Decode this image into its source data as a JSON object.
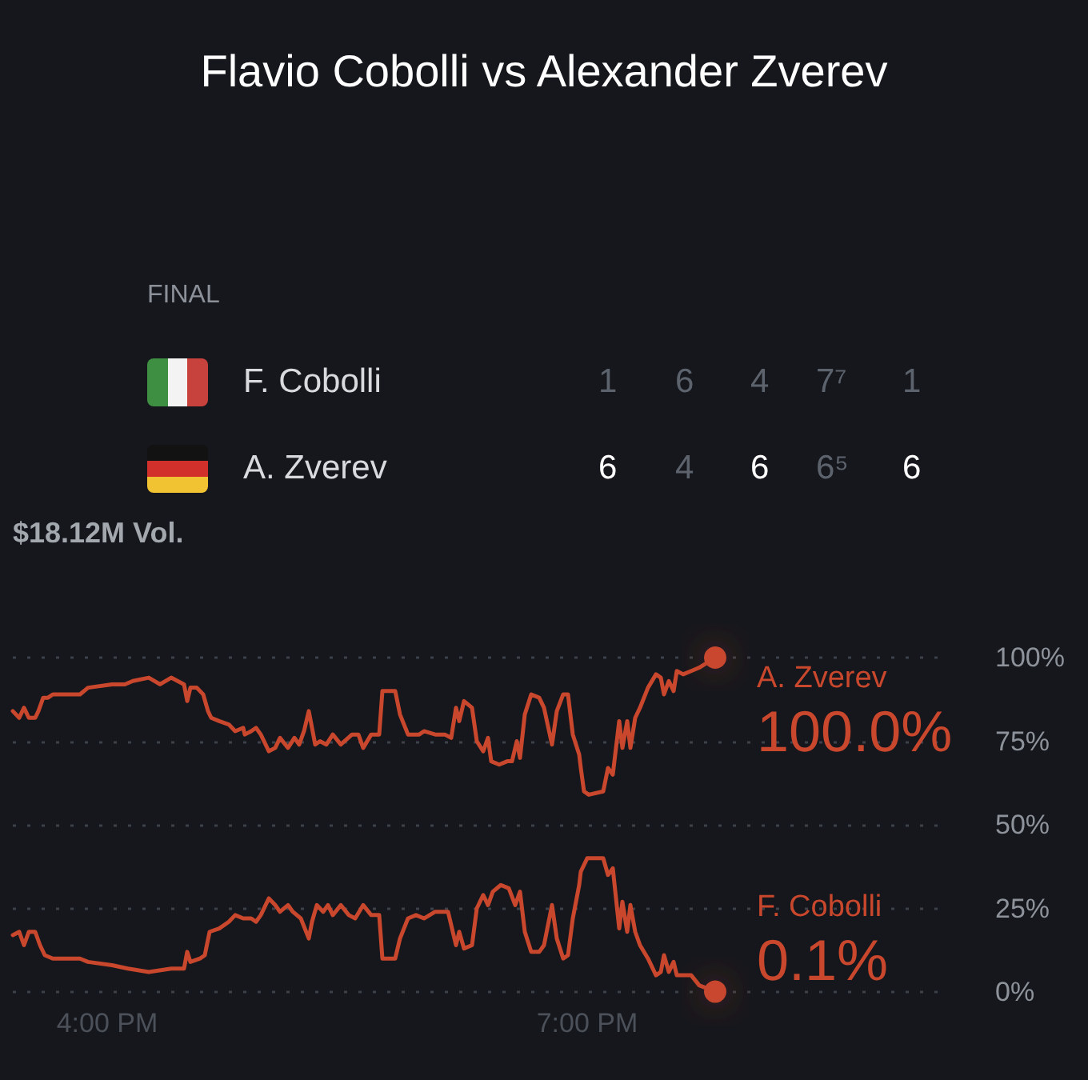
{
  "chart_data": [
    {
      "type": "other",
      "title": "Flavio Cobolli vs Alexander Zverev",
      "subtitle": "FINAL",
      "annotations": [
        "F. Cobolli",
        "1",
        "6",
        "4",
        "7⁷",
        "1",
        "A. Zverev",
        "6",
        "4",
        "6",
        "6⁵",
        "6"
      ]
    },
    {
      "type": "line",
      "annotations": [
        "$18.12M Vol."
      ],
      "xlim": [
        15.41,
        21.23
      ],
      "xticks": [
        {
          "value": 16,
          "label": "4:00 PM"
        },
        {
          "value": 19,
          "label": "7:00 PM"
        }
      ],
      "ylim": [
        0,
        100
      ],
      "yticks": [
        {
          "value": 0,
          "label": "0%"
        },
        {
          "value": 25,
          "label": "25%"
        },
        {
          "value": 50,
          "label": "50%"
        },
        {
          "value": 75,
          "label": "75%"
        },
        {
          "value": 100,
          "label": "100%"
        }
      ],
      "grid": "y",
      "line_style": "solid",
      "series": [
        {
          "name": "A. Zverev",
          "color": "#c8472d",
          "x": [
            15.41,
            15.45,
            15.48,
            15.51,
            15.55,
            15.57,
            15.6,
            15.63,
            15.66,
            15.83,
            15.88,
            16.03,
            16.11,
            16.16,
            16.26,
            16.33,
            16.4,
            16.48,
            16.5,
            16.52,
            16.56,
            16.6,
            16.63,
            16.65,
            16.7,
            16.76,
            16.8,
            16.85,
            16.86,
            16.9,
            16.93,
            16.96,
            17.01,
            17.05,
            17.08,
            17.13,
            17.17,
            17.2,
            17.23,
            17.26,
            17.28,
            17.3,
            17.33,
            17.37,
            17.41,
            17.46,
            17.53,
            17.57,
            17.6,
            17.65,
            17.7,
            17.72,
            17.8,
            17.83,
            17.88,
            17.95,
            17.98,
            18.05,
            18.11,
            18.15,
            18.18,
            18.2,
            18.23,
            18.28,
            18.31,
            18.35,
            18.38,
            18.4,
            18.45,
            18.5,
            18.53,
            18.56,
            18.58,
            18.61,
            18.65,
            18.7,
            18.73,
            18.78,
            18.81,
            18.85,
            18.88,
            18.91,
            18.95,
            18.96,
            18.98,
            19.01,
            19.1,
            19.13,
            19.16,
            19.2,
            19.22,
            19.25,
            19.27,
            19.3,
            19.33,
            19.38,
            19.43,
            19.46,
            19.48,
            19.51,
            19.54,
            19.56,
            19.6,
            19.65,
            19.7,
            19.8
          ],
          "values": [
            84,
            82,
            85,
            82,
            82,
            84,
            88,
            88,
            89,
            89,
            91,
            92,
            92,
            93,
            94,
            92,
            94,
            92,
            87,
            91,
            91,
            89,
            84,
            82,
            81,
            80,
            78,
            79,
            77,
            78,
            79,
            77,
            72,
            73,
            76,
            73,
            76,
            74,
            78,
            84,
            79,
            74,
            75,
            74,
            77,
            74,
            77,
            77,
            73,
            77,
            77,
            90,
            90,
            83,
            77,
            77,
            78,
            77,
            77,
            76,
            85,
            81,
            87,
            85,
            75,
            72,
            76,
            69,
            68,
            69,
            69,
            75,
            70,
            83,
            89,
            88,
            85,
            74,
            84,
            89,
            89,
            77,
            71,
            67,
            60,
            59,
            60,
            67,
            65,
            81,
            73,
            81,
            73,
            82,
            85,
            91,
            95,
            94,
            89,
            93,
            90,
            96,
            95,
            96,
            97,
            100
          ],
          "value_labels": [
            null,
            null,
            null,
            null,
            null,
            null,
            null,
            null,
            null,
            null,
            null,
            null,
            null,
            null,
            null,
            null,
            null,
            null,
            null,
            null,
            null,
            null,
            null,
            null,
            null,
            null,
            null,
            null,
            null,
            null,
            null,
            null,
            null,
            null,
            null,
            null,
            null,
            null,
            null,
            null,
            null,
            null,
            null,
            null,
            null,
            null,
            null,
            null,
            null,
            null,
            null,
            null,
            null,
            null,
            null,
            null,
            null,
            null,
            null,
            null,
            null,
            null,
            null,
            null,
            null,
            null,
            null,
            null,
            null,
            null,
            null,
            null,
            null,
            null,
            null,
            null,
            null,
            null,
            null,
            null,
            null,
            null,
            null,
            null,
            null,
            null,
            null,
            null,
            null,
            null,
            null,
            null,
            null,
            null,
            null,
            null,
            null,
            null,
            null,
            null,
            null,
            null,
            null,
            null,
            null,
            "100.0%"
          ]
        },
        {
          "name": "F. Cobolli",
          "color": "#c8472d",
          "x": [
            15.41,
            15.45,
            15.48,
            15.51,
            15.55,
            15.58,
            15.61,
            15.66,
            15.83,
            15.88,
            16.03,
            16.13,
            16.26,
            16.4,
            16.48,
            16.5,
            16.52,
            16.58,
            16.61,
            16.64,
            16.7,
            16.76,
            16.8,
            16.85,
            16.9,
            16.93,
            16.96,
            17.01,
            17.05,
            17.08,
            17.13,
            17.16,
            17.21,
            17.26,
            17.28,
            17.31,
            17.35,
            17.38,
            17.41,
            17.46,
            17.51,
            17.55,
            17.6,
            17.65,
            17.7,
            17.72,
            17.8,
            17.83,
            17.88,
            17.93,
            17.98,
            18.05,
            18.13,
            18.18,
            18.2,
            18.23,
            18.28,
            18.31,
            18.35,
            18.38,
            18.41,
            18.46,
            18.51,
            18.55,
            18.58,
            18.61,
            18.65,
            18.7,
            18.73,
            18.78,
            18.81,
            18.85,
            18.88,
            18.91,
            18.95,
            18.96,
            19,
            19.1,
            19.13,
            19.16,
            19.2,
            19.22,
            19.25,
            19.27,
            19.3,
            19.33,
            19.38,
            19.43,
            19.46,
            19.48,
            19.51,
            19.54,
            19.56,
            19.65,
            19.7,
            19.8
          ],
          "values": [
            17,
            18,
            14,
            18,
            18,
            14,
            11,
            10,
            10,
            9,
            8,
            7,
            6,
            7,
            7,
            12,
            9,
            10,
            11,
            18,
            19,
            21,
            23,
            22,
            22,
            21,
            23,
            28,
            26,
            24,
            26,
            24,
            22,
            16,
            21,
            26,
            24,
            26,
            23,
            26,
            23,
            22,
            26,
            23,
            23,
            10,
            10,
            16,
            22,
            23,
            22,
            24,
            24,
            14,
            18,
            13,
            14,
            25,
            29,
            26,
            30,
            32,
            31,
            26,
            30,
            18,
            12,
            12,
            14,
            26,
            16,
            10,
            11,
            22,
            32,
            36,
            40,
            40,
            35,
            37,
            19,
            27,
            18,
            26,
            18,
            14,
            10,
            5,
            6,
            11,
            6,
            9,
            5,
            5,
            2,
            0.1
          ],
          "value_labels": [
            null,
            null,
            null,
            null,
            null,
            null,
            null,
            null,
            null,
            null,
            null,
            null,
            null,
            null,
            null,
            null,
            null,
            null,
            null,
            null,
            null,
            null,
            null,
            null,
            null,
            null,
            null,
            null,
            null,
            null,
            null,
            null,
            null,
            null,
            null,
            null,
            null,
            null,
            null,
            null,
            null,
            null,
            null,
            null,
            null,
            null,
            null,
            null,
            null,
            null,
            null,
            null,
            null,
            null,
            null,
            null,
            null,
            null,
            null,
            null,
            null,
            null,
            null,
            null,
            null,
            null,
            null,
            null,
            null,
            null,
            null,
            null,
            null,
            null,
            null,
            null,
            null,
            null,
            null,
            null,
            null,
            null,
            null,
            null,
            null,
            null,
            null,
            null,
            null,
            null,
            null,
            null,
            null,
            null,
            null,
            "0.1%"
          ]
        }
      ]
    }
  ]
}
